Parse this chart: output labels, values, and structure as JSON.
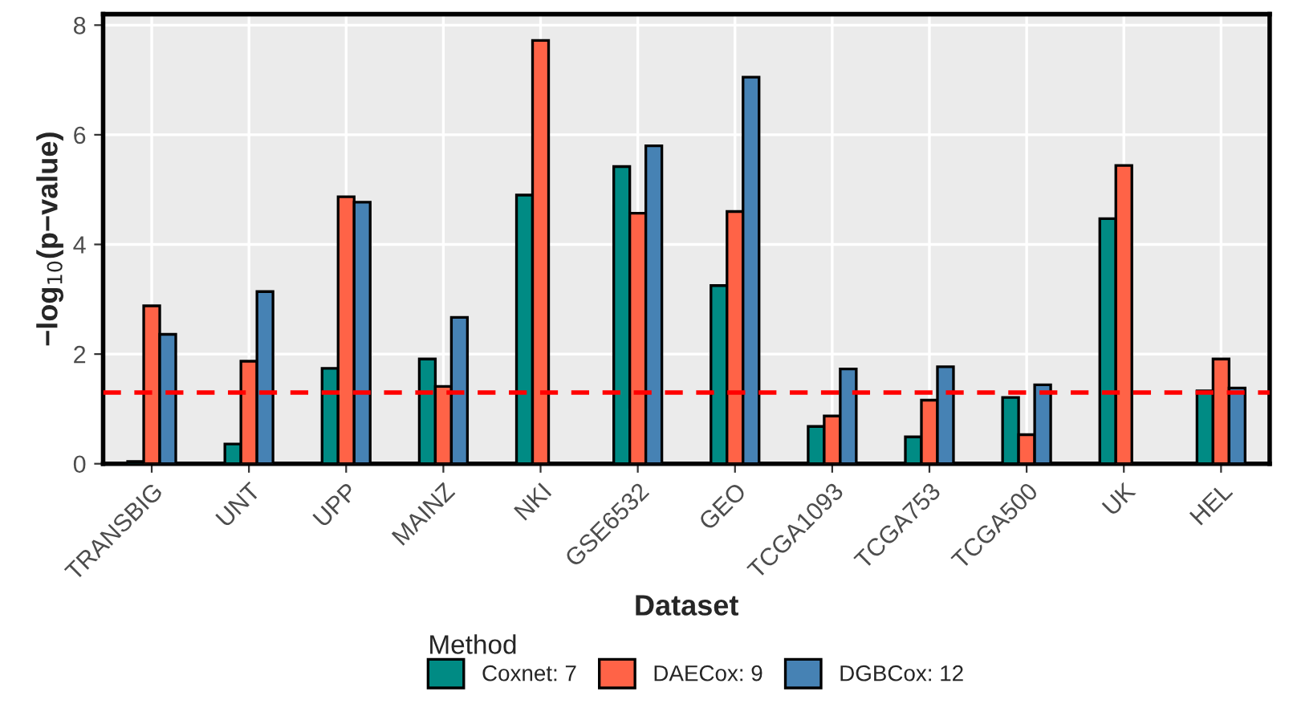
{
  "chart_data": {
    "type": "bar",
    "xlabel": "Dataset",
    "ylabel": "−log$_{10}$(p−value)",
    "legend_title": "Method",
    "categories": [
      "TRANSBIG",
      "UNT",
      "UPP",
      "MAINZ",
      "NKI",
      "GSE6532",
      "GEO",
      "TCGA1093",
      "TCGA753",
      "TCGA500",
      "UK",
      "HEL"
    ],
    "series": [
      {
        "name": "Coxnet: 7",
        "color": "#008b84",
        "values": [
          0.04,
          0.36,
          1.74,
          1.91,
          4.9,
          5.42,
          3.25,
          0.68,
          0.49,
          1.21,
          4.47,
          1.33
        ]
      },
      {
        "name": "DAECox: 9",
        "color": "#ff6347",
        "values": [
          2.88,
          1.87,
          4.87,
          1.41,
          7.72,
          4.57,
          4.6,
          0.87,
          1.16,
          0.53,
          5.44,
          1.91
        ]
      },
      {
        "name": "DGBCox: 12",
        "color": "#4682b4",
        "values": [
          2.36,
          3.14,
          4.77,
          2.67,
          null,
          5.8,
          7.05,
          1.73,
          1.77,
          1.44,
          null,
          1.38
        ]
      }
    ],
    "ylim": [
      0,
      8.2
    ],
    "yticks": [
      0,
      2,
      4,
      6,
      8
    ],
    "ref_lines": [
      {
        "axis": "y",
        "value": 1.3,
        "color": "#ff0000",
        "line_style": "dashed"
      }
    ],
    "grid": true,
    "legend": "bottom"
  }
}
